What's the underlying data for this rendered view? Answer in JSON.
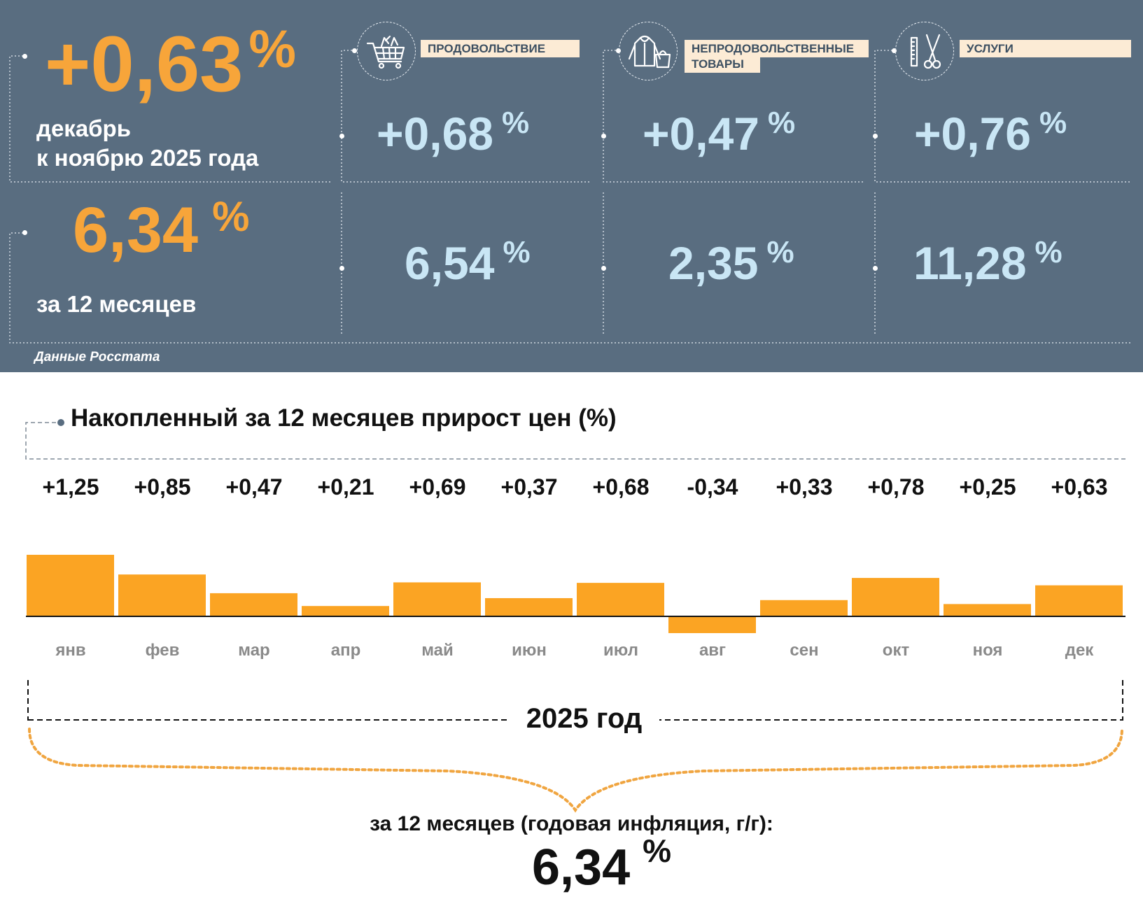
{
  "summary": {
    "monthly_value": "+0,63",
    "percent_sign": "%",
    "monthly_label_line1": "декабрь",
    "monthly_label_line2": "к ноябрю 2025 года",
    "annual_value": "6,34",
    "annual_label": "за 12 месяцев",
    "source": "Данные Росстата"
  },
  "categories": [
    {
      "name": "ПРОДОВОЛЬСТВИЕ",
      "icon": "shopping-cart-icon",
      "monthly": "+0,68",
      "annual": "6,54"
    },
    {
      "name_line1": "НЕПРОДОВОЛЬСТВЕННЫЕ",
      "name_line2": "ТОВАРЫ",
      "icon": "clothing-icon",
      "monthly": "+0,47",
      "annual": "2,35"
    },
    {
      "name": "УСЛУГИ",
      "icon": "scissors-comb-icon",
      "monthly": "+0,76",
      "annual": "11,28"
    }
  ],
  "colors": {
    "panel": "#596d80",
    "orange": "#f7a53a",
    "bar": "#fba423",
    "light_blue": "#c9e6f5",
    "tag": "#fcebd5"
  },
  "chart_data": {
    "type": "bar",
    "title": "Накопленный за 12 месяцев прирост цен (%)",
    "categories": [
      "янв",
      "фев",
      "мар",
      "апр",
      "май",
      "июн",
      "июл",
      "авг",
      "сен",
      "окт",
      "ноя",
      "дек"
    ],
    "values": [
      1.25,
      0.85,
      0.47,
      0.21,
      0.69,
      0.37,
      0.68,
      -0.34,
      0.33,
      0.78,
      0.25,
      0.63
    ],
    "value_labels": [
      "+1,25",
      "+0,85",
      "+0,47",
      "+0,21",
      "+0,69",
      "+0,37",
      "+0,68",
      "-0,34",
      "+0,33",
      "+0,78",
      "+0,25",
      "+0,63"
    ],
    "xlabel": "2025 год",
    "ylabel": "",
    "ylim": [
      -0.34,
      1.25
    ],
    "grid": false
  },
  "footer": {
    "label": "за 12 месяцев (годовая инфляция, г/г):",
    "value": "6,34",
    "percent_sign": "%"
  }
}
